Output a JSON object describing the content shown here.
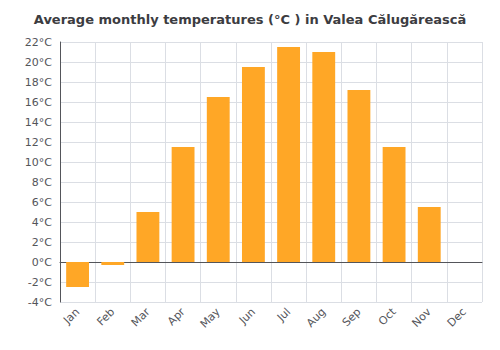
{
  "chart_data": {
    "type": "bar",
    "title": "Average monthly temperatures (°C ) in Valea Călugărească",
    "categories": [
      "Jan",
      "Feb",
      "Mar",
      "Apr",
      "May",
      "Jun",
      "Jul",
      "Aug",
      "Sep",
      "Oct",
      "Nov",
      "Dec"
    ],
    "values": [
      -2.5,
      -0.3,
      5.0,
      11.5,
      16.5,
      19.5,
      21.5,
      21.0,
      17.2,
      11.5,
      5.5,
      0.0
    ],
    "color": "#FFA726",
    "ylim": [
      -4,
      22
    ],
    "yticks": [
      {
        "value": -4,
        "label": "-4°C"
      },
      {
        "value": -2,
        "label": "-2°C"
      },
      {
        "value": 0,
        "label": "0°C"
      },
      {
        "value": 2,
        "label": "2°C"
      },
      {
        "value": 4,
        "label": "4°C"
      },
      {
        "value": 6,
        "label": "6°C"
      },
      {
        "value": 8,
        "label": "8°C"
      },
      {
        "value": 10,
        "label": "10°C"
      },
      {
        "value": 12,
        "label": "12°C"
      },
      {
        "value": 14,
        "label": "14°C"
      },
      {
        "value": 16,
        "label": "16°C"
      },
      {
        "value": 18,
        "label": "18°C"
      },
      {
        "value": 20,
        "label": "20°C"
      },
      {
        "value": 22,
        "label": "22°C"
      }
    ],
    "grid": true
  }
}
